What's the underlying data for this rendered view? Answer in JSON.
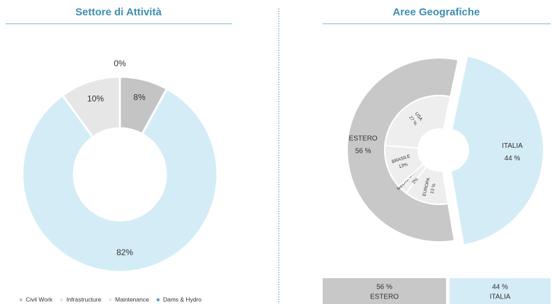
{
  "chart_data": [
    {
      "type": "donut",
      "title": "Settore di Attività",
      "categories": [
        "Civil Work",
        "Infrastructure",
        "Maintenance",
        "Dams & Hydro"
      ],
      "values": [
        8,
        82,
        10,
        0
      ],
      "value_labels": [
        "8%",
        "82%",
        "10%",
        "0%"
      ],
      "colors": [
        "#c4c4c4",
        "#d4ecf6",
        "#e6e6e6",
        "#4aa3c8"
      ],
      "legend": "bottom"
    },
    {
      "type": "sunburst",
      "title": "Aree Geografiche",
      "categories": [
        "ESTERO",
        "ITALIA"
      ],
      "values": [
        56,
        44
      ],
      "value_labels": [
        "56 %",
        "44 %"
      ],
      "colors": [
        "#c8c8c8",
        "#d4ecf6"
      ],
      "children": {
        "categories": [
          "EUROPA",
          "MEDIO ORIENTE",
          "BRASILE",
          "USA"
        ],
        "values": [
          13,
          3,
          13,
          27
        ],
        "value_labels": [
          "13 %",
          "3%",
          "13%",
          "27 %"
        ],
        "color": "#eeeeee"
      }
    }
  ]
}
